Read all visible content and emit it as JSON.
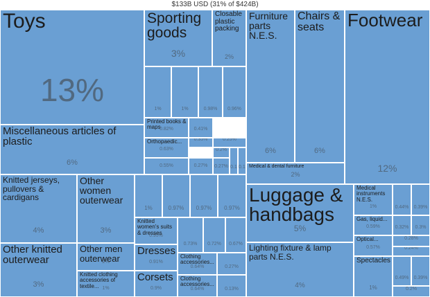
{
  "chart_data": {
    "type": "treemap",
    "title": "$133B USD (31% of $424B)",
    "colors": {
      "cell": "#6a9fd3",
      "border": "#ffffff",
      "text": "#1c1c1c",
      "percent": "#5a5a5a"
    },
    "items": [
      {
        "label": "Toys",
        "share": "13%"
      },
      {
        "label": "Miscellaneous articles of plastic",
        "share": "6%"
      },
      {
        "label": "Sporting goods",
        "share": "3%"
      },
      {
        "label": "Closable plastic packing",
        "share": "2%"
      },
      {
        "label": "",
        "share": "1%"
      },
      {
        "label": "",
        "share": "1%"
      },
      {
        "label": "",
        "share": "0.98%"
      },
      {
        "label": "",
        "share": "0.96%"
      },
      {
        "label": "Printed books & maps",
        "share": "0.82%"
      },
      {
        "label": "",
        "share": "0.41%"
      },
      {
        "label": "Orthopaedic...",
        "share": "0.63%"
      },
      {
        "label": "",
        "share": "0.35%"
      },
      {
        "label": "",
        "share": "0.25%"
      },
      {
        "label": "",
        "share": "0.2%"
      },
      {
        "label": "",
        "share": "0.55%"
      },
      {
        "label": "",
        "share": "0.27%"
      },
      {
        "label": "",
        "share": "0.27%"
      },
      {
        "label": "",
        "share": "0.13%"
      },
      {
        "label": "",
        "share": "0.11%"
      },
      {
        "label": "Furniture parts N.E.S.",
        "share": "6%"
      },
      {
        "label": "Chairs & seats",
        "share": "6%"
      },
      {
        "label": "Medical & dental furniture",
        "share": "2%"
      },
      {
        "label": "Footwear",
        "share": "12%"
      },
      {
        "label": "Knitted jerseys, pullovers & cardigans",
        "share": "4%"
      },
      {
        "label": "Other women outerwear",
        "share": "3%"
      },
      {
        "label": "Other knitted outerwear",
        "share": "3%"
      },
      {
        "label": "Other men outerwear",
        "share": "1%"
      },
      {
        "label": "Knitted clothing accessories of textile...",
        "share": "1%"
      },
      {
        "label": "",
        "share": "1%"
      },
      {
        "label": "",
        "share": "0.97%"
      },
      {
        "label": "",
        "share": "0.97%"
      },
      {
        "label": "",
        "share": "0.97%"
      },
      {
        "label": "Knitted women's suits & dresses",
        "share": "0.95%"
      },
      {
        "label": "Dresses",
        "share": "0.91%"
      },
      {
        "label": "Corsets",
        "share": "0.9%"
      },
      {
        "label": "",
        "share": "0.73%"
      },
      {
        "label": "",
        "share": "0.72%"
      },
      {
        "label": "",
        "share": "0.67%"
      },
      {
        "label": "Clothing accessories...",
        "share": "0.64%"
      },
      {
        "label": "",
        "share": "0.27%"
      },
      {
        "label": "Clothing accessories...",
        "share": "0.64%"
      },
      {
        "label": "",
        "share": "0.13%"
      },
      {
        "label": "Luggage & handbags",
        "share": "5%"
      },
      {
        "label": "Lighting fixture & lamp parts N.E.S.",
        "share": "4%"
      },
      {
        "label": "Medical instruments N.E.S.",
        "share": "1%"
      },
      {
        "label": "",
        "share": "0.44%"
      },
      {
        "label": "",
        "share": "0.39%"
      },
      {
        "label": "Gas, liquid...",
        "share": "0.59%"
      },
      {
        "label": "",
        "share": "0.32%"
      },
      {
        "label": "",
        "share": "0.3%"
      },
      {
        "label": "Optical...",
        "share": "0.57%"
      },
      {
        "label": "",
        "share": "0.28%"
      },
      {
        "label": "",
        "share": "0.24%"
      },
      {
        "label": "Spectacles",
        "share": "1%"
      },
      {
        "label": "",
        "share": "0.49%"
      },
      {
        "label": "",
        "share": "0.39%"
      },
      {
        "label": "",
        "share": "0.2%"
      }
    ]
  }
}
